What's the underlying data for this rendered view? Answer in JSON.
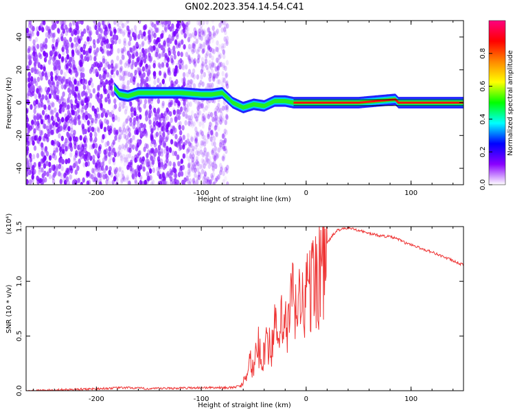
{
  "title": "GN02.2023.354.14.54.C41",
  "chart_data": [
    {
      "type": "heatmap",
      "title": "GN02.2023.354.14.54.C41",
      "xlabel": "Height of straight line (km)",
      "ylabel": "Frequency (Hz)",
      "xlim": [
        -267,
        150
      ],
      "ylim": [
        -50,
        50
      ],
      "x_ticks": [
        -200,
        -100,
        0,
        100
      ],
      "y_ticks": [
        -40,
        -20,
        0,
        20,
        40
      ],
      "colorbar": {
        "label": "Normalized spectral amplitude",
        "range": [
          0.0,
          1.0
        ],
        "ticks": [
          "0.0",
          "0.2",
          "0.4",
          "0.6",
          "0.8"
        ],
        "colormap": [
          "#ffffff",
          "#8a00ff",
          "#0000ff",
          "#00ffff",
          "#00ff00",
          "#ffff00",
          "#ff8800",
          "#ff0000",
          "#ff0080"
        ]
      },
      "ridge": {
        "x": [
          -183,
          -178,
          -170,
          -160,
          -140,
          -120,
          -100,
          -90,
          -80,
          -70,
          -60,
          -50,
          -40,
          -30,
          -20,
          -12,
          0,
          50,
          85,
          88,
          150
        ],
        "y": [
          9,
          5,
          4,
          6,
          6,
          6,
          5,
          5,
          6,
          0,
          -3,
          -1,
          -2,
          1,
          1,
          0,
          0,
          0,
          2,
          0,
          0
        ]
      },
      "noise_region_km": [
        -267,
        -85
      ]
    },
    {
      "type": "line",
      "xlabel": "Height of straight line (km)",
      "ylabel": "SNR (10 * v/v)",
      "y_multiplier": "(x10⁴)",
      "xlim": [
        -267,
        150
      ],
      "ylim": [
        0,
        1.5
      ],
      "x_ticks": [
        -200,
        -100,
        0,
        100
      ],
      "y_ticks": [
        "0.0",
        "0.5",
        "1.0",
        "1.5"
      ],
      "series": [
        {
          "color": "#ee3333",
          "x": [
            -267,
            -200,
            -170,
            -150,
            -100,
            -80,
            -70,
            -62,
            -58,
            -54,
            -50,
            -46,
            -42,
            -38,
            -34,
            -30,
            -26,
            -22,
            -18,
            -14,
            -10,
            -5,
            0,
            5,
            10,
            15,
            20,
            25,
            30,
            35,
            40,
            50,
            60,
            70,
            80,
            90,
            95,
            100,
            110,
            120,
            130,
            140,
            150
          ],
          "y": [
            0.0,
            0.02,
            0.03,
            0.02,
            0.03,
            0.03,
            0.03,
            0.05,
            0.15,
            0.3,
            0.2,
            0.45,
            0.3,
            0.55,
            0.4,
            0.6,
            0.5,
            0.75,
            0.55,
            0.95,
            0.8,
            0.9,
            0.95,
            1.05,
            1.15,
            1.25,
            1.35,
            1.42,
            1.47,
            1.48,
            1.49,
            1.47,
            1.44,
            1.42,
            1.41,
            1.38,
            1.35,
            1.34,
            1.3,
            1.27,
            1.23,
            1.19,
            1.15
          ]
        }
      ]
    }
  ]
}
